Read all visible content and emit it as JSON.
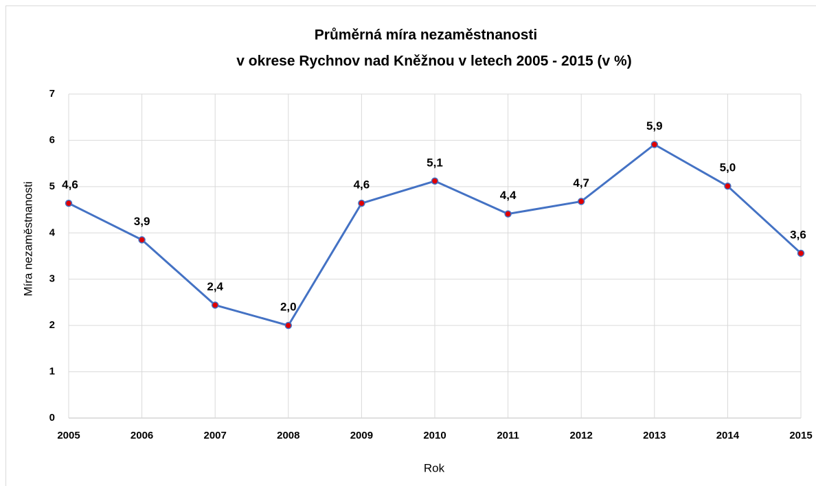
{
  "chart_data": {
    "type": "line",
    "title": [
      "Průměrná míra nezaměstnanosti",
      "v okrese Rychnov nad Kněžnou v letech 2005 - 2015 (v %)"
    ],
    "x_label": "Rok",
    "y_label": "Míra nezaměstnanosti",
    "categories": [
      "2005",
      "2006",
      "2007",
      "2008",
      "2009",
      "2010",
      "2011",
      "2012",
      "2013",
      "2014",
      "2015"
    ],
    "series": [
      {
        "name": "Míra nezaměstnanosti",
        "color": "#4472c4",
        "marker_color": "#e00000",
        "values": [
          4.64,
          3.85,
          2.44,
          2.0,
          4.64,
          5.12,
          4.41,
          4.68,
          5.91,
          5.01,
          3.56
        ],
        "value_labels": [
          "4,6",
          "3,9",
          "2,4",
          "2,0",
          "4,6",
          "5,1",
          "4,4",
          "4,7",
          "5,9",
          "5,0",
          "3,6"
        ]
      }
    ],
    "ylim": [
      0,
      7
    ],
    "yticks": [
      0,
      1,
      2,
      3,
      4,
      5,
      6,
      7
    ],
    "grid": true
  }
}
